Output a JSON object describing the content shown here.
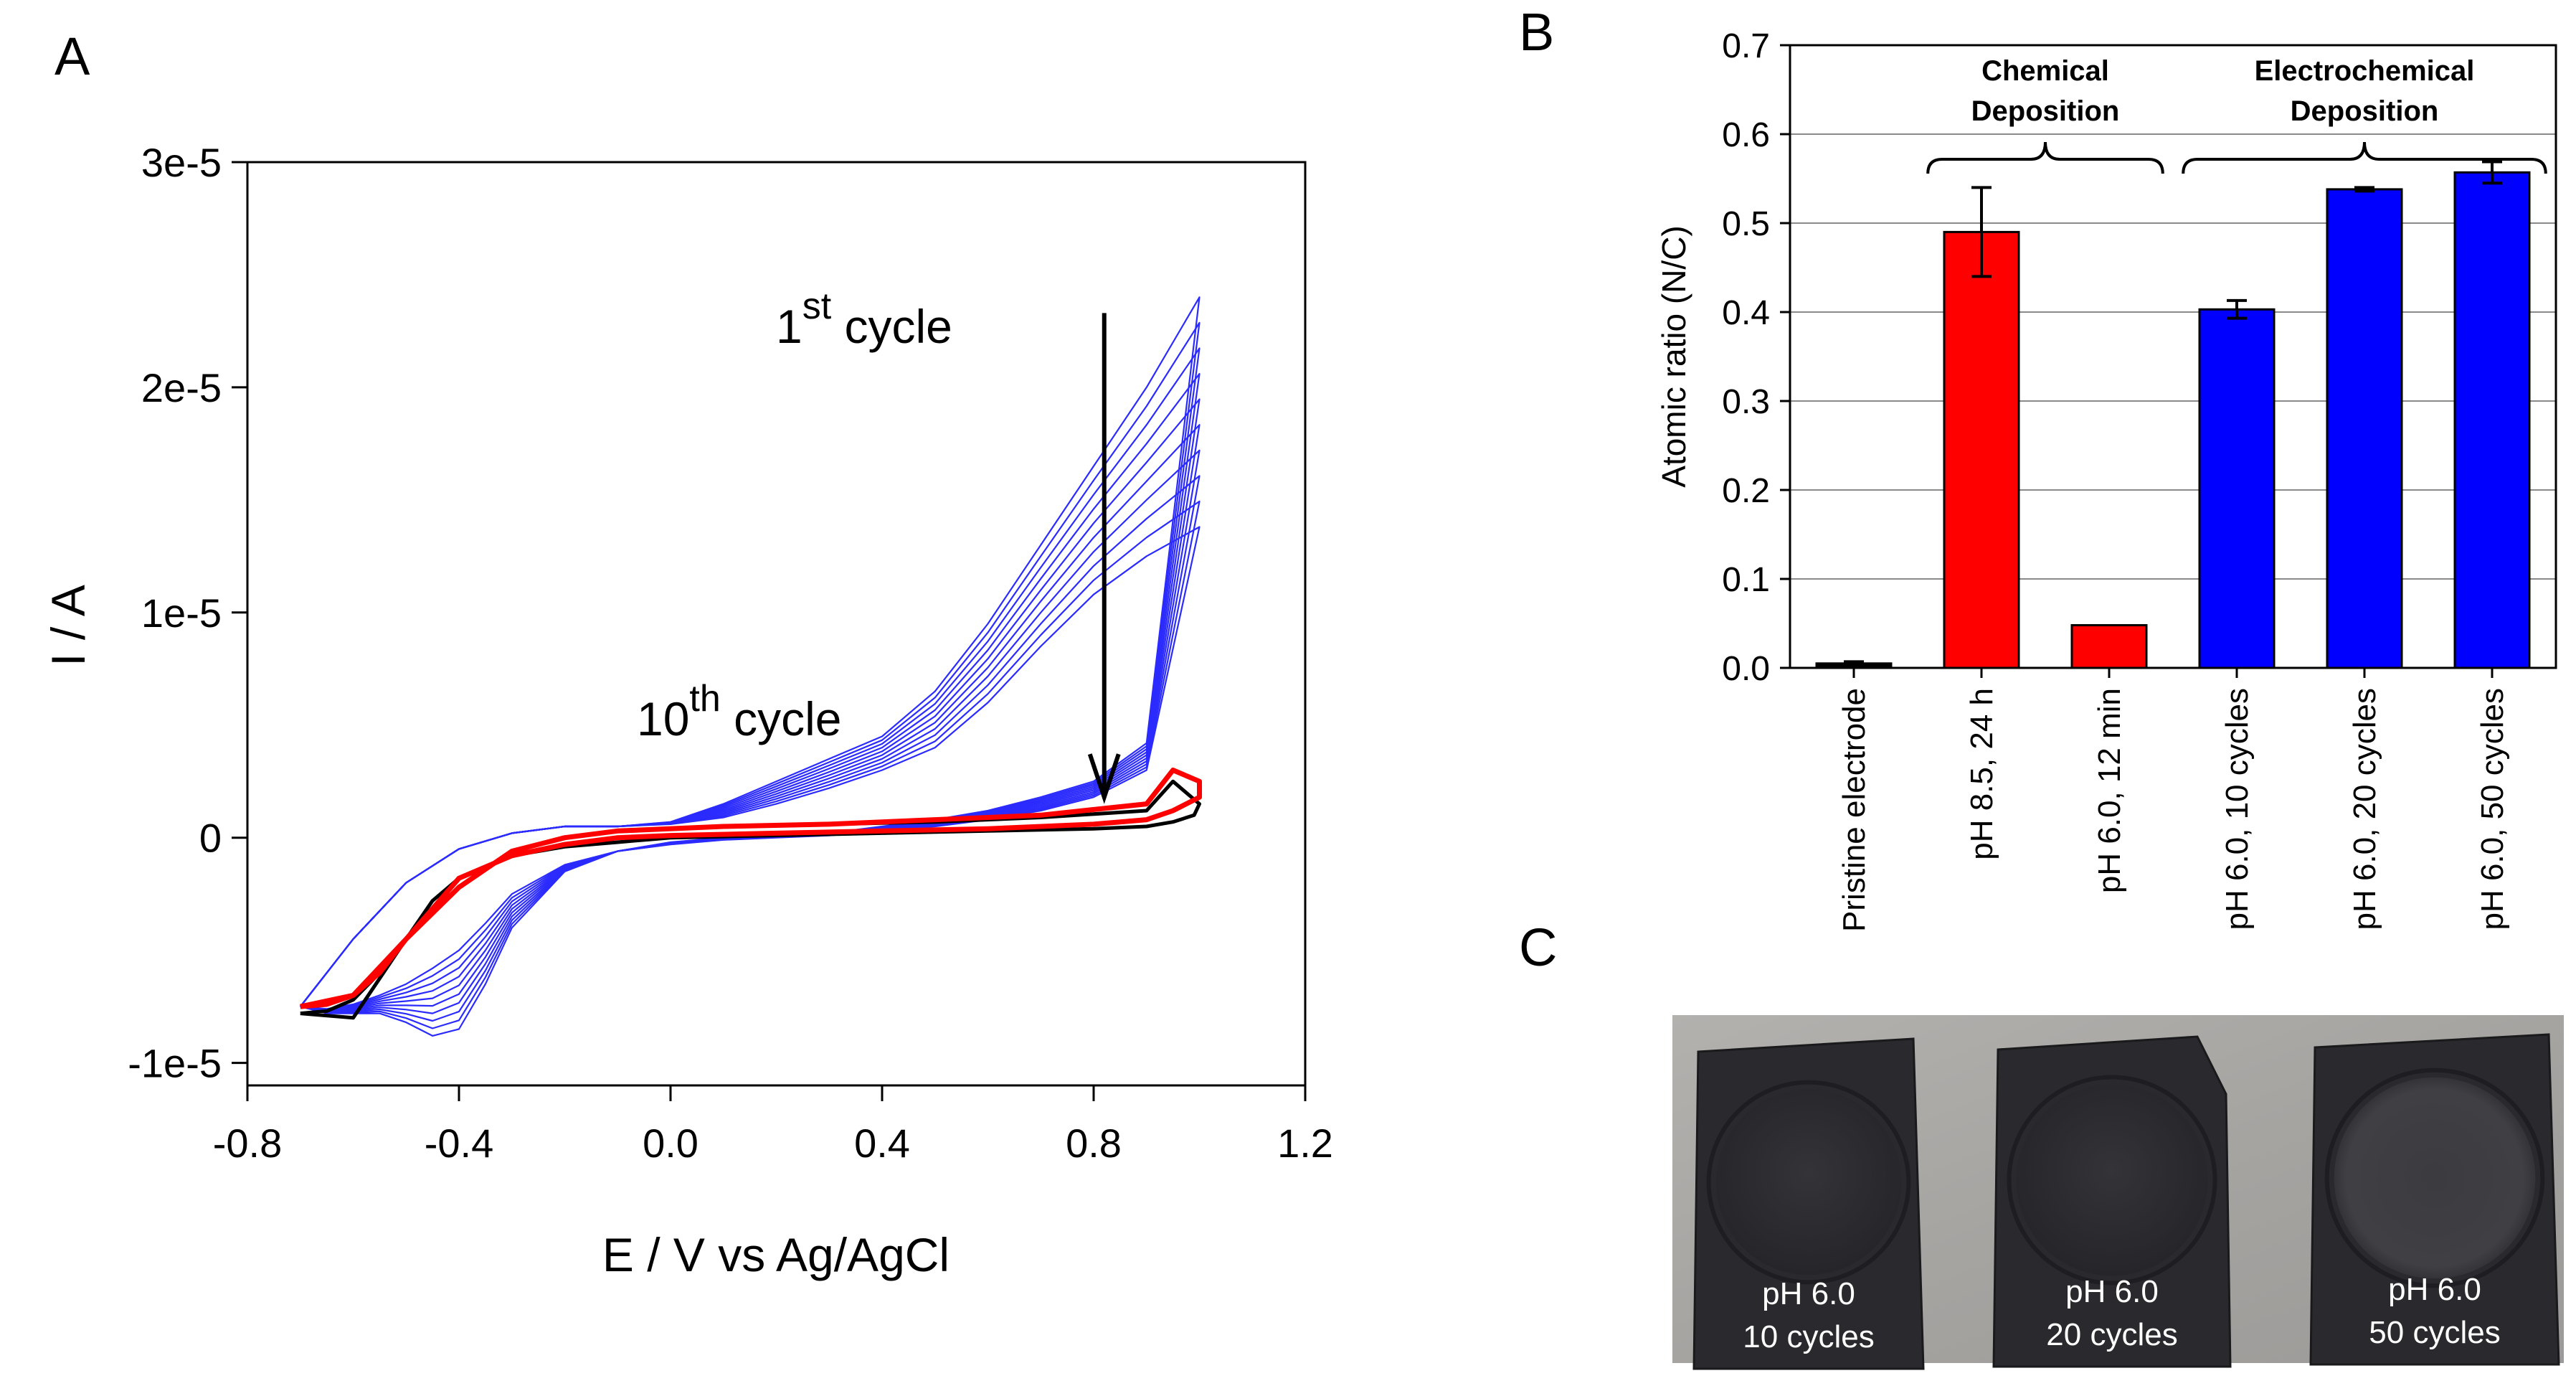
{
  "panels": {
    "a": "A",
    "b": "B",
    "c": "C"
  },
  "chart_data": [
    {
      "type": "line",
      "title": "",
      "xlabel": "E / V vs Ag/AgCl",
      "ylabel": "I / A",
      "xlim": [
        -0.8,
        1.2
      ],
      "ylim": [
        -1.1e-05,
        3e-05
      ],
      "x_ticks": [
        -0.8,
        -0.4,
        0.0,
        0.4,
        0.8,
        1.2
      ],
      "x_tick_labels": [
        "-0.8",
        "-0.4",
        "0.0",
        "0.4",
        "0.8",
        "1.2"
      ],
      "y_ticks": [
        -1e-05,
        0,
        1e-05,
        2e-05,
        3e-05
      ],
      "y_tick_labels": [
        "-1e-5",
        "0",
        "1e-5",
        "2e-5",
        "3e-5"
      ],
      "annotations": [
        {
          "base": "1",
          "sup": "st",
          "tail": " cycle"
        },
        {
          "base": "10",
          "sup": "th",
          "tail": " cycle"
        }
      ],
      "series": [
        {
          "name": "cycles 1-10",
          "color": "#2b2bff",
          "cycles": 10,
          "anodic_x": [
            -0.7,
            -0.6,
            -0.5,
            -0.4,
            -0.3,
            -0.2,
            -0.1,
            0.0,
            0.1,
            0.2,
            0.3,
            0.4,
            0.5,
            0.6,
            0.7,
            0.8,
            0.9,
            1.0
          ],
          "anodic_first": [
            -7.5e-06,
            -4.5e-06,
            -2e-06,
            -5e-07,
            2e-07,
            5e-07,
            5e-07,
            7e-07,
            1.5e-06,
            2.5e-06,
            3.5e-06,
            4.5e-06,
            6.5e-06,
            9.5e-06,
            1.3e-05,
            1.65e-05,
            2e-05,
            2.4e-05
          ],
          "anodic_last": [
            -7.5e-06,
            -4.5e-06,
            -2e-06,
            -5e-07,
            2e-07,
            5e-07,
            5e-07,
            6e-07,
            9e-07,
            1.5e-06,
            2.2e-06,
            3e-06,
            4e-06,
            6e-06,
            8.5e-06,
            1.08e-05,
            1.25e-05,
            1.38e-05
          ],
          "cathodic_x": [
            1.0,
            0.9,
            0.8,
            0.7,
            0.6,
            0.5,
            0.4,
            0.3,
            0.2,
            0.1,
            0.0,
            -0.1,
            -0.2,
            -0.3,
            -0.35,
            -0.4,
            -0.45,
            -0.5,
            -0.55,
            -0.6,
            -0.65,
            -0.7
          ],
          "cathodic_first": [
            2.4e-05,
            4.2e-06,
            2.5e-06,
            1.8e-06,
            1.2e-06,
            8e-07,
            5e-07,
            2e-07,
            1e-07,
            0.0,
            -2e-07,
            -6e-07,
            -1.5e-06,
            -4e-06,
            -6.5e-06,
            -8.5e-06,
            -8.8e-06,
            -8.2e-06,
            -7.8e-06,
            -7.8e-06,
            -7.8e-06,
            -7.5e-06
          ],
          "cathodic_last": [
            1.38e-05,
            3e-06,
            1.8e-06,
            1.2e-06,
            8e-07,
            5e-07,
            3e-07,
            1e-07,
            0.0,
            -1e-07,
            -3e-07,
            -6e-07,
            -1.2e-06,
            -2.5e-06,
            -3.8e-06,
            -5e-06,
            -5.8e-06,
            -6.5e-06,
            -7e-06,
            -7.4e-06,
            -7.6e-06,
            -7.5e-06
          ]
        },
        {
          "name": "black",
          "color": "#000000",
          "x": [
            -0.7,
            -0.6,
            -0.5,
            -0.45,
            -0.4,
            -0.3,
            -0.2,
            -0.1,
            0.0,
            0.2,
            0.4,
            0.6,
            0.8,
            0.9,
            0.95,
            0.99,
            1.0,
            1.0,
            0.95,
            0.9,
            0.7,
            0.5,
            0.3,
            0.1,
            -0.1,
            -0.2,
            -0.3,
            -0.4,
            -0.5,
            -0.55,
            -0.6,
            -0.65,
            -0.7
          ],
          "y": [
            -7.8e-06,
            -8e-06,
            -4.5e-06,
            -2.8e-06,
            -1.8e-06,
            -8e-07,
            -4e-07,
            -2e-07,
            0.0,
            1e-07,
            2e-07,
            3e-07,
            4e-07,
            5e-07,
            7e-07,
            1e-06,
            1.5e-06,
            1.5e-06,
            2.5e-06,
            1.2e-06,
            9e-07,
            7e-07,
            6e-07,
            5e-07,
            3e-07,
            0.0,
            -6e-07,
            -2.2e-06,
            -4.5e-06,
            -6e-06,
            -7.2e-06,
            -7.7e-06,
            -7.8e-06
          ]
        },
        {
          "name": "red",
          "color": "#ff0000",
          "x": [
            -0.7,
            -0.6,
            -0.5,
            -0.4,
            -0.3,
            -0.2,
            -0.1,
            0.0,
            0.2,
            0.4,
            0.6,
            0.8,
            0.9,
            0.95,
            1.0,
            1.0,
            0.95,
            0.9,
            0.7,
            0.5,
            0.3,
            0.1,
            -0.1,
            -0.2,
            -0.3,
            -0.4,
            -0.5,
            -0.55,
            -0.6,
            -0.65,
            -0.7
          ],
          "y": [
            -7.5e-06,
            -7e-06,
            -4.5e-06,
            -1.8e-06,
            -8e-07,
            -3e-07,
            0.0,
            1e-07,
            2e-07,
            3e-07,
            4e-07,
            6e-07,
            8e-07,
            1.2e-06,
            1.8e-06,
            2.5e-06,
            3e-06,
            1.5e-06,
            1e-06,
            8e-07,
            6e-07,
            5e-07,
            3e-07,
            0.0,
            -6e-07,
            -2.2e-06,
            -4.5e-06,
            -6e-06,
            -7e-06,
            -7.4e-06,
            -7.5e-06
          ]
        }
      ],
      "arrow": {
        "from": [
          0.82,
          2.33e-05
        ],
        "to": [
          0.82,
          1.8e-06
        ],
        "color": "#000000"
      }
    },
    {
      "type": "bar",
      "title": "",
      "xlabel": "",
      "ylabel": "Atomic ratio (N/C)",
      "ylim": [
        0.0,
        0.7
      ],
      "y_ticks": [
        0.0,
        0.1,
        0.2,
        0.3,
        0.4,
        0.5,
        0.6,
        0.7
      ],
      "y_tick_labels": [
        "0.0",
        "0.1",
        "0.2",
        "0.3",
        "0.4",
        "0.5",
        "0.6",
        "0.7"
      ],
      "grid": true,
      "categories": [
        "Pristine electrode",
        "pH 8.5, 24 h",
        "pH 6.0, 12 min",
        "pH 6.0, 10 cycles",
        "pH 6.0, 20 cycles",
        "pH 6.0, 50 cycles"
      ],
      "values": [
        0.005,
        0.49,
        0.048,
        0.403,
        0.538,
        0.557
      ],
      "errors": [
        0.002,
        0.05,
        0.0,
        0.01,
        0.002,
        0.012
      ],
      "colors": [
        "#000000",
        "#ff0000",
        "#ff0000",
        "#0000ff",
        "#0000ff",
        "#0000ff"
      ],
      "groups": [
        {
          "label_lines": [
            "Chemical",
            "Deposition"
          ],
          "from": 1,
          "to": 2
        },
        {
          "label_lines": [
            "Electrochemical",
            "Deposition"
          ],
          "from": 3,
          "to": 5
        }
      ]
    }
  ],
  "photo": {
    "samples": [
      {
        "line1": "pH 6.0",
        "line2": "10 cycles"
      },
      {
        "line1": "pH 6.0",
        "line2": "20 cycles"
      },
      {
        "line1": "pH 6.0",
        "line2": "50 cycles"
      }
    ],
    "colors": {
      "background": "#a9a7a5",
      "sample": "#2a2a2e",
      "ring": "#1e1e22",
      "text": "#ffffff"
    }
  }
}
